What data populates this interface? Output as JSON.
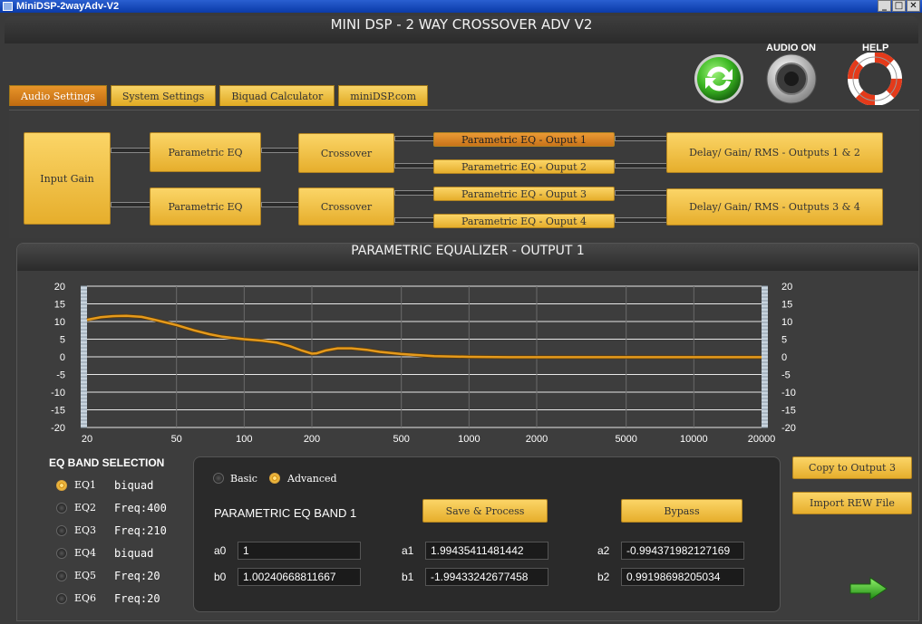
{
  "window": {
    "title": "MiniDSP-2wayAdv-V2",
    "btn_min": "_",
    "btn_max": "□",
    "btn_close": "✕"
  },
  "header": {
    "title": "MINI DSP - 2 WAY CROSSOVER ADV V2"
  },
  "icons": {
    "refresh": "refresh-icon",
    "audio": "speaker-icon",
    "help": "lifebuoy-icon"
  },
  "icon_labels": {
    "audio_on": "AUDIO ON",
    "help": "HELP"
  },
  "tabs": [
    {
      "label": "Audio Settings"
    },
    {
      "label": "System Settings"
    },
    {
      "label": "Biquad Calculator"
    },
    {
      "label": "miniDSP.com"
    }
  ],
  "flow": {
    "input_gain": "Input Gain",
    "peq_1": "Parametric EQ",
    "peq_2": "Parametric EQ",
    "crossover_1": "Crossover",
    "crossover_2": "Crossover",
    "outputs": [
      "Parametric EQ - Ouput 1",
      "Parametric EQ - Ouput 2",
      "Parametric EQ - Ouput 3",
      "Parametric EQ - Ouput 4"
    ],
    "delay_12": "Delay/ Gain/ RMS - Outputs 1 & 2",
    "delay_34": "Delay/ Gain/ RMS - Outputs 3 & 4"
  },
  "eq_panel": {
    "title": "PARAMETRIC EQUALIZER - OUTPUT 1"
  },
  "chart_data": {
    "type": "line",
    "x_scale": "log",
    "xlim": [
      20,
      20000
    ],
    "ylim": [
      -20,
      20
    ],
    "x_ticks": [
      "20",
      "50",
      "100",
      "200",
      "500",
      "1000",
      "2000",
      "5000",
      "10000",
      "20000"
    ],
    "y_ticks": [
      "20",
      "15",
      "10",
      "5",
      "0",
      "-5",
      "-10",
      "-15",
      "-20"
    ],
    "grid": true,
    "series": [
      {
        "color": "#e59a1c",
        "x": [
          20,
          23,
          26,
          30,
          35,
          40,
          50,
          60,
          70,
          80,
          90,
          100,
          120,
          140,
          160,
          180,
          200,
          210,
          230,
          260,
          300,
          350,
          400,
          500,
          700,
          1000,
          1500,
          2000,
          3000,
          5000,
          10000,
          20000
        ],
        "y": [
          10.5,
          11.2,
          11.5,
          11.6,
          11.3,
          10.5,
          9.0,
          7.5,
          6.4,
          5.7,
          5.3,
          5.0,
          4.6,
          4.0,
          3.0,
          1.8,
          0.9,
          1.0,
          1.8,
          2.4,
          2.4,
          2.0,
          1.4,
          0.8,
          0.2,
          0.0,
          -0.1,
          -0.1,
          -0.1,
          -0.1,
          -0.1,
          -0.1
        ]
      }
    ]
  },
  "bands": {
    "title": "EQ BAND SELECTION",
    "items": [
      {
        "name": "EQ1",
        "value": "biquad",
        "selected": true
      },
      {
        "name": "EQ2",
        "value": "Freq:400",
        "selected": false
      },
      {
        "name": "EQ3",
        "value": "Freq:210",
        "selected": false
      },
      {
        "name": "EQ4",
        "value": "biquad",
        "selected": false
      },
      {
        "name": "EQ5",
        "value": "Freq:20",
        "selected": false
      },
      {
        "name": "EQ6",
        "value": "Freq:20",
        "selected": false
      }
    ]
  },
  "coef": {
    "mode_basic": "Basic",
    "mode_advanced": "Advanced",
    "band_title": "PARAMETRIC EQ BAND 1",
    "save_label": "Save & Process",
    "bypass_label": "Bypass",
    "a0_label": "a0",
    "a0": "1",
    "a1_label": "a1",
    "a1": "1.99435411481442",
    "a2_label": "a2",
    "a2": "-0.994371982127169",
    "b0_label": "b0",
    "b0": "1.00240668811667",
    "b1_label": "b1",
    "b1": "-1.99433242677458",
    "b2_label": "b2",
    "b2": "0.99198698205034"
  },
  "side_buttons": {
    "copy": "Copy to Output 3",
    "import": "Import REW File"
  },
  "colors": {
    "accent": "#e6ae2c",
    "selected": "#d07a1c",
    "curve": "#e59a1c"
  }
}
